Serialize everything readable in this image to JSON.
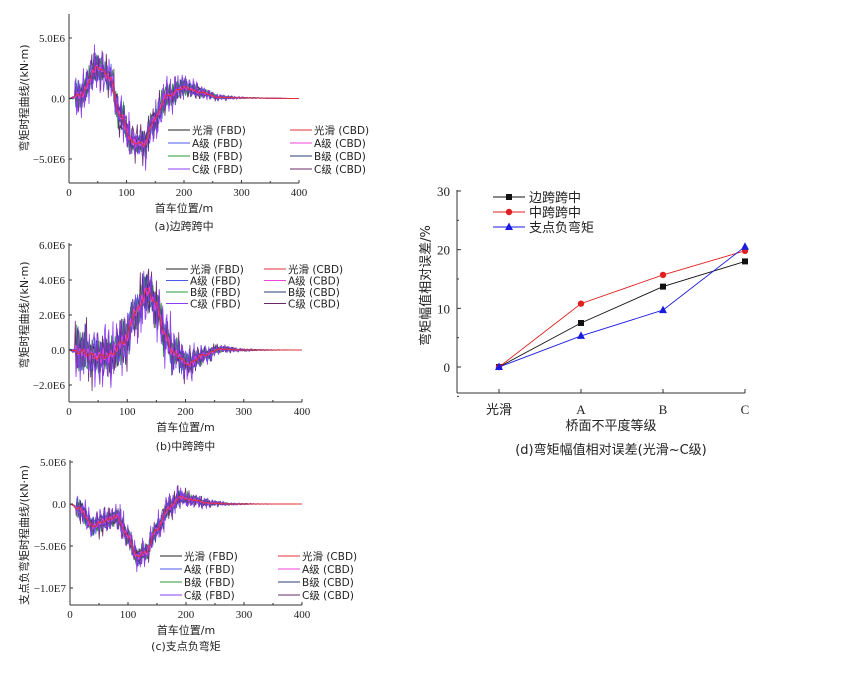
{
  "chart_data": [
    {
      "id": "a",
      "type": "line",
      "caption": "(a)边跨跨中",
      "xlabel": "首车位置/m",
      "ylabel": "弯矩时程曲线/(kN·m)",
      "xlim": [
        0,
        400
      ],
      "ylim": [
        -6900000.0,
        7000000.0
      ],
      "xticks": [
        0,
        100,
        200,
        300,
        400
      ],
      "xtick_labels": [
        "0",
        "100",
        "200",
        "300",
        "400"
      ],
      "yticks": [
        5000000.0,
        0,
        -5000000.0
      ],
      "ytick_labels": [
        "5.0E6",
        "0.0",
        "−5.0E6"
      ],
      "legend_position": "lower-right",
      "series": [
        {
          "name": "光滑 (FBD)",
          "color": "#222222",
          "amp": 0.55,
          "seed": 1
        },
        {
          "name": "光滑 (CBD)",
          "color": "#e0303a",
          "amp": 0.0,
          "seed": 2
        },
        {
          "name": "A级 (FBD)",
          "color": "#4a5ae8",
          "amp": 0.7,
          "seed": 3
        },
        {
          "name": "A级 (CBD)",
          "color": "#ee44dd",
          "amp": 0.25,
          "seed": 4
        },
        {
          "name": "B级 (FBD)",
          "color": "#2a9a3a",
          "amp": 0.8,
          "seed": 5
        },
        {
          "name": "B级 (CBD)",
          "color": "#2e3a7a",
          "amp": 0.9,
          "seed": 6
        },
        {
          "name": "C级 (FBD)",
          "color": "#8a3ef0",
          "amp": 1.25,
          "seed": 7
        },
        {
          "name": "C级 (CBD)",
          "color": "#6a2a6a",
          "amp": 1.1,
          "seed": 8
        }
      ],
      "envelope": [
        [
          0,
          0
        ],
        [
          20,
          300000.0
        ],
        [
          50,
          2600000.0
        ],
        [
          70,
          1800000.0
        ],
        [
          90,
          -1500000.0
        ],
        [
          110,
          -3600000.0
        ],
        [
          130,
          -3800000.0
        ],
        [
          150,
          -1600000.0
        ],
        [
          170,
          200000.0
        ],
        [
          200,
          900000.0
        ],
        [
          230,
          500000.0
        ],
        [
          260,
          100000.0
        ],
        [
          300,
          50000.0
        ],
        [
          400,
          0
        ]
      ]
    },
    {
      "id": "b",
      "type": "line",
      "caption": "(b)中跨跨中",
      "xlabel": "首车位置/m",
      "ylabel": "弯矩时程曲线/(kN·m)",
      "xlim": [
        0,
        400
      ],
      "ylim": [
        -3000000.0,
        6000000.0
      ],
      "xticks": [
        0,
        100,
        200,
        300,
        400
      ],
      "xtick_labels": [
        "0",
        "100",
        "200",
        "300",
        "400"
      ],
      "yticks": [
        6000000.0,
        4000000.0,
        2000000.0,
        0,
        -2000000.0
      ],
      "ytick_labels": [
        "6.0E6",
        "4.0E6",
        "2.0E6",
        "0.0",
        "−2.0E6"
      ],
      "legend_position": "upper-right",
      "series": [
        {
          "name": "光滑 (FBD)",
          "color": "#222222",
          "amp": 0.55,
          "seed": 11
        },
        {
          "name": "光滑 (CBD)",
          "color": "#e0303a",
          "amp": 0.0,
          "seed": 12
        },
        {
          "name": "A级 (FBD)",
          "color": "#4a5ae8",
          "amp": 0.7,
          "seed": 13
        },
        {
          "name": "A级 (CBD)",
          "color": "#ee44dd",
          "amp": 0.25,
          "seed": 14
        },
        {
          "name": "B级 (FBD)",
          "color": "#2a9a3a",
          "amp": 0.8,
          "seed": 15
        },
        {
          "name": "B级 (CBD)",
          "color": "#2e3a7a",
          "amp": 0.9,
          "seed": 16
        },
        {
          "name": "C级 (FBD)",
          "color": "#8a3ef0",
          "amp": 1.3,
          "seed": 17
        },
        {
          "name": "C级 (CBD)",
          "color": "#6a2a6a",
          "amp": 1.1,
          "seed": 18
        }
      ],
      "envelope": [
        [
          0,
          0
        ],
        [
          20,
          -100000.0
        ],
        [
          50,
          -400000.0
        ],
        [
          70,
          -300000.0
        ],
        [
          95,
          500000.0
        ],
        [
          115,
          2200000.0
        ],
        [
          135,
          3400000.0
        ],
        [
          150,
          2600000.0
        ],
        [
          165,
          800000.0
        ],
        [
          180,
          -200000.0
        ],
        [
          205,
          -800000.0
        ],
        [
          230,
          -300000.0
        ],
        [
          260,
          50000.0
        ],
        [
          300,
          0
        ],
        [
          400,
          0
        ]
      ]
    },
    {
      "id": "c",
      "type": "line",
      "caption": "(c)支点负弯矩",
      "xlabel": "首车位置/m",
      "ylabel": "支点负弯矩时程曲线/(kN·m)",
      "xlim": [
        0,
        400
      ],
      "ylim": [
        -12000000.0,
        5000000.0
      ],
      "xticks": [
        0,
        100,
        200,
        300,
        400
      ],
      "xtick_labels": [
        "0",
        "100",
        "200",
        "300",
        "400"
      ],
      "yticks": [
        5000000.0,
        0,
        -5000000.0,
        -10000000.0
      ],
      "ytick_labels": [
        "5.0E6",
        "0.0",
        "−5.0E6",
        "−1.0E7"
      ],
      "legend_position": "lower-right",
      "series": [
        {
          "name": "光滑 (FBD)",
          "color": "#222222",
          "amp": 0.55,
          "seed": 21
        },
        {
          "name": "光滑 (CBD)",
          "color": "#e0303a",
          "amp": 0.0,
          "seed": 22
        },
        {
          "name": "A级 (FBD)",
          "color": "#4a5ae8",
          "amp": 0.7,
          "seed": 23
        },
        {
          "name": "A级 (CBD)",
          "color": "#ee44dd",
          "amp": 0.25,
          "seed": 24
        },
        {
          "name": "B级 (FBD)",
          "color": "#2a9a3a",
          "amp": 0.8,
          "seed": 25
        },
        {
          "name": "B级 (CBD)",
          "color": "#2e3a7a",
          "amp": 0.9,
          "seed": 26
        },
        {
          "name": "C级 (FBD)",
          "color": "#8a3ef0",
          "amp": 1.3,
          "seed": 27
        },
        {
          "name": "C级 (CBD)",
          "color": "#6a2a6a",
          "amp": 1.1,
          "seed": 28
        }
      ],
      "envelope": [
        [
          0,
          0
        ],
        [
          15,
          -500000.0
        ],
        [
          40,
          -2600000.0
        ],
        [
          60,
          -2000000.0
        ],
        [
          80,
          -1500000.0
        ],
        [
          100,
          -3800000.0
        ],
        [
          115,
          -6200000.0
        ],
        [
          130,
          -5800000.0
        ],
        [
          150,
          -3000000.0
        ],
        [
          170,
          -500000.0
        ],
        [
          190,
          800000.0
        ],
        [
          210,
          500000.0
        ],
        [
          240,
          100000.0
        ],
        [
          280,
          0
        ],
        [
          400,
          0
        ]
      ]
    },
    {
      "id": "d",
      "type": "line",
      "caption": "(d)弯矩幅值相对误差(光滑~C级)",
      "xlabel": "桥面不平度等级",
      "ylabel": "弯矩幅值相对误差/%",
      "categories": [
        "光滑",
        "A",
        "B",
        "C"
      ],
      "ylim": [
        -5,
        30
      ],
      "yticks": [
        0,
        10,
        20,
        30
      ],
      "ytick_labels": [
        "0",
        "10",
        "20",
        "30"
      ],
      "legend_position": "top-left",
      "series": [
        {
          "name": "边跨跨中",
          "color": "#111111",
          "marker": "square",
          "values": [
            0,
            7.5,
            13.7,
            18.0
          ]
        },
        {
          "name": "中跨跨中",
          "color": "#e02020",
          "marker": "circle",
          "values": [
            0,
            10.8,
            15.7,
            19.8
          ]
        },
        {
          "name": "支点负弯矩",
          "color": "#1a1ae0",
          "marker": "triangle",
          "values": [
            0,
            5.3,
            9.7,
            20.5
          ]
        }
      ]
    }
  ]
}
